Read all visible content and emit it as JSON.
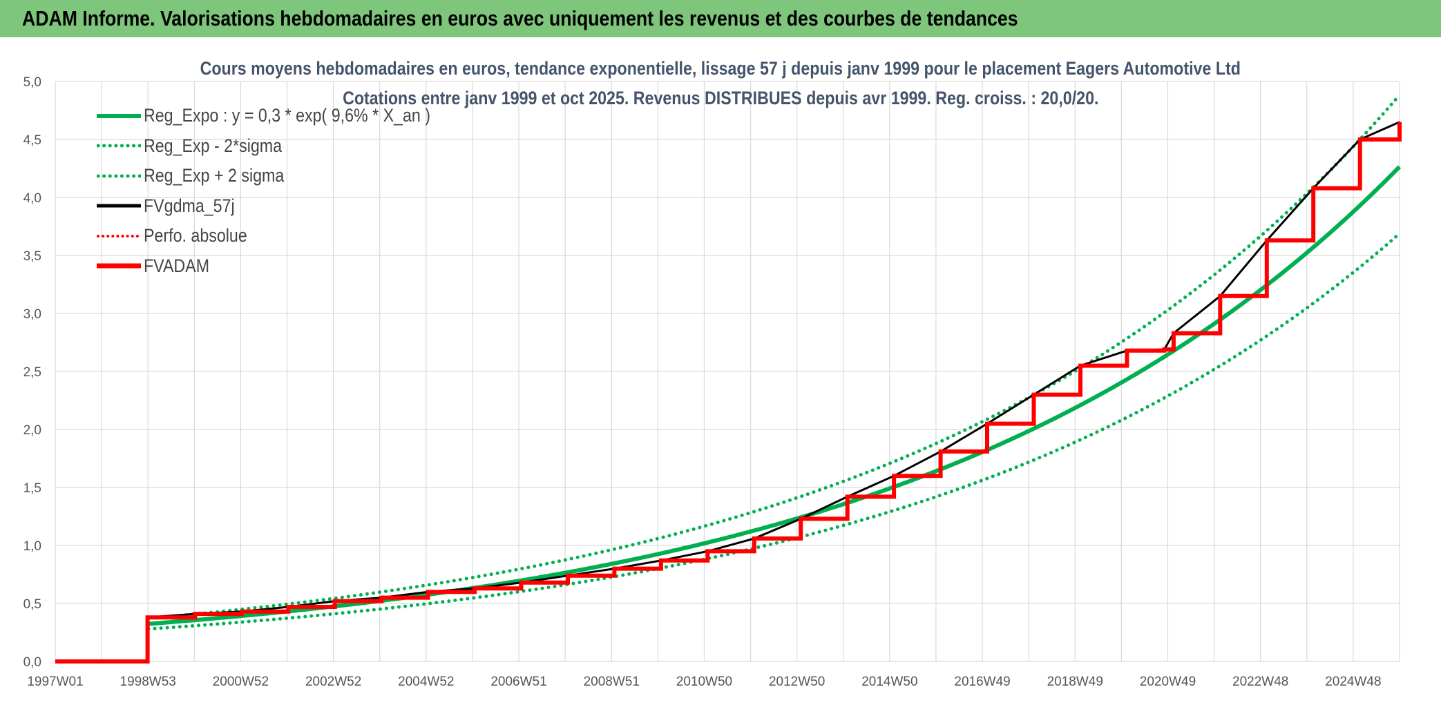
{
  "header": {
    "title": "ADAM Informe. Valorisations hebdomadaires en euros avec uniquement les revenus et des courbes de tendances"
  },
  "colors": {
    "header_bg": "#7dc67b",
    "reg_expo": "#00b050",
    "fvgdma": "#000000",
    "fvadam": "#ff0000",
    "grid": "#d9d9d9",
    "title": "#44546a"
  },
  "chart_data": {
    "type": "line",
    "title_line1": "Cours moyens hebdomadaires en euros, tendance exponentielle, lissage 57 j depuis janv 1999 pour le placement Eagers Automotive Ltd",
    "title_line2": "Cotations entre janv 1999 et oct 2025. Revenus DISTRIBUES depuis avr 1999. Reg. croiss. : 20,0/20.",
    "xlabel": "",
    "ylabel": "",
    "ylim": [
      0,
      5
    ],
    "yticks": [
      "0,0",
      "0,5",
      "1,0",
      "1,5",
      "2,0",
      "2,5",
      "3,0",
      "3,5",
      "4,0",
      "4,5",
      "5,0"
    ],
    "xticks": [
      "1997W01",
      "1998W53",
      "2000W52",
      "2002W52",
      "2004W52",
      "2006W51",
      "2008W51",
      "2010W50",
      "2012W50",
      "2014W50",
      "2016W49",
      "2018W49",
      "2020W49",
      "2022W48",
      "2024W48"
    ],
    "grid": true,
    "legend_position": "top-left",
    "x_range_years": [
      1997.0,
      2025.85
    ],
    "series": [
      {
        "name": "Reg_Expo : y = 0,3 * exp( 9,6% *  X_an )",
        "style": "solid-green",
        "start": 1999.0,
        "end": 2025.85,
        "formula_a": 0.3,
        "formula_rate": 0.096,
        "formula_t0": 1998.2
      },
      {
        "name": "Reg_Exp - 2*sigma",
        "style": "dotted-green",
        "factor": 0.865
      },
      {
        "name": "Reg_Exp + 2 sigma",
        "style": "dotted-green",
        "factor": 1.145
      },
      {
        "name": "FVgdma_57j",
        "style": "solid-black"
      },
      {
        "name": "Perfo. absolue",
        "style": "dotted-red"
      },
      {
        "name": "FVADAM",
        "style": "solid-red",
        "points": [
          [
            1997.0,
            0.0
          ],
          [
            1998.97,
            0.0
          ],
          [
            1998.98,
            0.38
          ],
          [
            2000.0,
            0.41
          ],
          [
            2001.0,
            0.43
          ],
          [
            2002.0,
            0.47
          ],
          [
            2003.0,
            0.52
          ],
          [
            2004.0,
            0.55
          ],
          [
            2005.0,
            0.6
          ],
          [
            2006.0,
            0.63
          ],
          [
            2007.0,
            0.68
          ],
          [
            2008.0,
            0.74
          ],
          [
            2009.0,
            0.8
          ],
          [
            2010.0,
            0.87
          ],
          [
            2011.0,
            0.95
          ],
          [
            2012.0,
            1.06
          ],
          [
            2013.0,
            1.23
          ],
          [
            2014.0,
            1.42
          ],
          [
            2015.0,
            1.6
          ],
          [
            2016.0,
            1.81
          ],
          [
            2017.0,
            2.05
          ],
          [
            2018.0,
            2.3
          ],
          [
            2019.0,
            2.55
          ],
          [
            2020.0,
            2.68
          ],
          [
            2020.8,
            2.69
          ],
          [
            2021.0,
            2.83
          ],
          [
            2022.0,
            3.15
          ],
          [
            2023.0,
            3.63
          ],
          [
            2024.0,
            4.08
          ],
          [
            2025.0,
            4.5
          ],
          [
            2025.85,
            4.65
          ]
        ]
      }
    ]
  }
}
